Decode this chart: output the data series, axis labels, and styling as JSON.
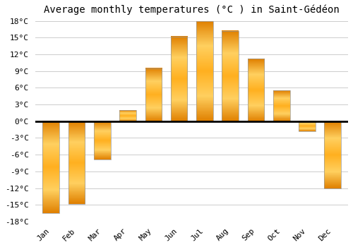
{
  "title": "Average monthly temperatures (°C ) in Saint-Gédéon",
  "months": [
    "Jan",
    "Feb",
    "Mar",
    "Apr",
    "May",
    "Jun",
    "Jul",
    "Aug",
    "Sep",
    "Oct",
    "Nov",
    "Dec"
  ],
  "values": [
    -16.5,
    -14.8,
    -6.8,
    2.0,
    9.5,
    15.2,
    18.0,
    16.2,
    11.2,
    5.5,
    -1.8,
    -12.0
  ],
  "bar_color": "#FFA500",
  "bar_edge_color": "#888888",
  "ylim": [
    -18,
    18
  ],
  "yticks": [
    -18,
    -15,
    -12,
    -9,
    -6,
    -3,
    0,
    3,
    6,
    9,
    12,
    15,
    18
  ],
  "background_color": "#ffffff",
  "grid_color": "#cccccc",
  "zero_line_color": "#000000",
  "title_fontsize": 10,
  "tick_fontsize": 8,
  "bar_width": 0.65
}
